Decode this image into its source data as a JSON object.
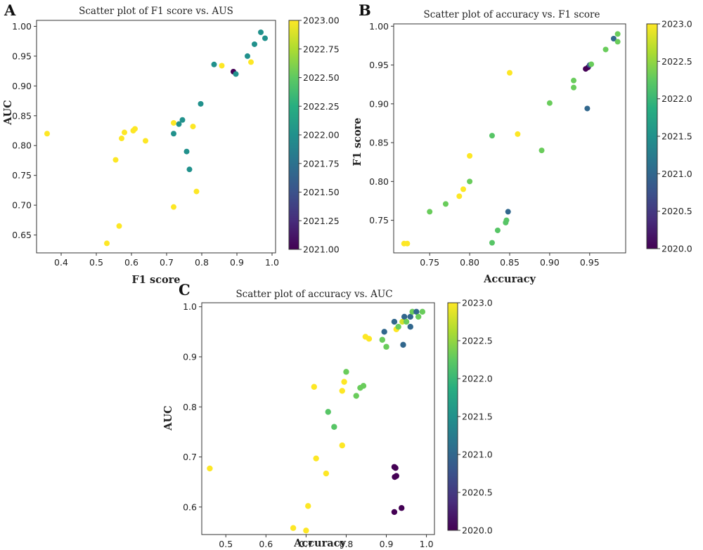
{
  "chart_data": [
    {
      "panel": "A",
      "type": "scatter",
      "title": "Scatter plot of F1 score vs. AUS",
      "xlabel": "F1 score",
      "ylabel": "AUC",
      "xlim": [
        0.33,
        1.01
      ],
      "ylim": [
        0.62,
        1.01
      ],
      "xticks": [
        0.4,
        0.5,
        0.6,
        0.7,
        0.8,
        0.9,
        1.0
      ],
      "xtick_labels": [
        "0.4",
        "0.5",
        "0.6",
        "0.7",
        "0.8",
        "0.9",
        "1.0"
      ],
      "yticks": [
        0.65,
        0.7,
        0.75,
        0.8,
        0.85,
        0.9,
        0.95,
        1.0
      ],
      "ytick_labels": [
        "0.65",
        "0.70",
        "0.75",
        "0.80",
        "0.85",
        "0.90",
        "0.95",
        "1.00"
      ],
      "colorbar": {
        "label": "",
        "range": [
          2021.0,
          2023.0
        ],
        "ticks": [
          2021.0,
          2021.25,
          2021.5,
          2021.75,
          2022.0,
          2022.25,
          2022.5,
          2022.75,
          2023.0
        ],
        "tick_labels": [
          "2021.00",
          "2021.25",
          "2021.50",
          "2021.75",
          "2022.00",
          "2022.25",
          "2022.50",
          "2022.75",
          "2023.00"
        ]
      },
      "points": [
        {
          "x": 0.36,
          "y": 0.82,
          "year": 2023
        },
        {
          "x": 0.53,
          "y": 0.636,
          "year": 2023
        },
        {
          "x": 0.555,
          "y": 0.776,
          "year": 2023
        },
        {
          "x": 0.565,
          "y": 0.665,
          "year": 2023
        },
        {
          "x": 0.572,
          "y": 0.812,
          "year": 2023
        },
        {
          "x": 0.58,
          "y": 0.822,
          "year": 2023
        },
        {
          "x": 0.605,
          "y": 0.825,
          "year": 2023
        },
        {
          "x": 0.61,
          "y": 0.828,
          "year": 2023
        },
        {
          "x": 0.64,
          "y": 0.808,
          "year": 2023
        },
        {
          "x": 0.72,
          "y": 0.697,
          "year": 2023
        },
        {
          "x": 0.72,
          "y": 0.838,
          "year": 2023
        },
        {
          "x": 0.72,
          "y": 0.82,
          "year": 2022
        },
        {
          "x": 0.735,
          "y": 0.836,
          "year": 2022
        },
        {
          "x": 0.745,
          "y": 0.843,
          "year": 2022
        },
        {
          "x": 0.757,
          "y": 0.79,
          "year": 2022
        },
        {
          "x": 0.765,
          "y": 0.76,
          "year": 2022
        },
        {
          "x": 0.775,
          "y": 0.832,
          "year": 2023
        },
        {
          "x": 0.785,
          "y": 0.723,
          "year": 2023
        },
        {
          "x": 0.797,
          "y": 0.87,
          "year": 2022
        },
        {
          "x": 0.835,
          "y": 0.936,
          "year": 2022
        },
        {
          "x": 0.857,
          "y": 0.934,
          "year": 2023
        },
        {
          "x": 0.89,
          "y": 0.924,
          "year": 2021
        },
        {
          "x": 0.897,
          "y": 0.92,
          "year": 2022
        },
        {
          "x": 0.93,
          "y": 0.95,
          "year": 2022
        },
        {
          "x": 0.94,
          "y": 0.94,
          "year": 2023
        },
        {
          "x": 0.95,
          "y": 0.97,
          "year": 2022
        },
        {
          "x": 0.968,
          "y": 0.99,
          "year": 2022
        },
        {
          "x": 0.98,
          "y": 0.98,
          "year": 2022
        }
      ]
    },
    {
      "panel": "B",
      "type": "scatter",
      "title": "Scatter plot of accuracy vs. F1 score",
      "xlabel": "Accuracy",
      "ylabel": "F1 score",
      "xlim": [
        0.705,
        0.995
      ],
      "ylim": [
        0.708,
        1.003
      ],
      "xticks": [
        0.75,
        0.8,
        0.85,
        0.9,
        0.95
      ],
      "xtick_labels": [
        "0.75",
        "0.80",
        "0.85",
        "0.90",
        "0.95"
      ],
      "yticks": [
        0.75,
        0.8,
        0.85,
        0.9,
        0.95,
        1.0
      ],
      "ytick_labels": [
        "0.75",
        "0.80",
        "0.85",
        "0.90",
        "0.95",
        "1.00"
      ],
      "colorbar": {
        "label": "",
        "range": [
          2020.0,
          2023.0
        ],
        "ticks": [
          2020.0,
          2020.5,
          2021.0,
          2021.5,
          2022.0,
          2022.5,
          2023.0
        ],
        "tick_labels": [
          "2020.0",
          "2020.5",
          "2021.0",
          "2021.5",
          "2022.0",
          "2022.5",
          "2023.0"
        ]
      },
      "points": [
        {
          "x": 0.718,
          "y": 0.72,
          "year": 2023
        },
        {
          "x": 0.722,
          "y": 0.72,
          "year": 2023
        },
        {
          "x": 0.75,
          "y": 0.761,
          "year": 2022.3
        },
        {
          "x": 0.77,
          "y": 0.771,
          "year": 2022.3
        },
        {
          "x": 0.787,
          "y": 0.781,
          "year": 2023
        },
        {
          "x": 0.792,
          "y": 0.79,
          "year": 2023
        },
        {
          "x": 0.8,
          "y": 0.8,
          "year": 2022.3
        },
        {
          "x": 0.8,
          "y": 0.833,
          "year": 2023
        },
        {
          "x": 0.828,
          "y": 0.721,
          "year": 2022.2
        },
        {
          "x": 0.835,
          "y": 0.737,
          "year": 2022.2
        },
        {
          "x": 0.828,
          "y": 0.859,
          "year": 2022.2
        },
        {
          "x": 0.845,
          "y": 0.747,
          "year": 2022.2
        },
        {
          "x": 0.846,
          "y": 0.75,
          "year": 2022.2
        },
        {
          "x": 0.848,
          "y": 0.761,
          "year": 2021
        },
        {
          "x": 0.85,
          "y": 0.94,
          "year": 2023
        },
        {
          "x": 0.86,
          "y": 0.861,
          "year": 2023
        },
        {
          "x": 0.89,
          "y": 0.84,
          "year": 2022.3
        },
        {
          "x": 0.9,
          "y": 0.901,
          "year": 2022.3
        },
        {
          "x": 0.93,
          "y": 0.93,
          "year": 2022.3
        },
        {
          "x": 0.93,
          "y": 0.921,
          "year": 2022.3
        },
        {
          "x": 0.945,
          "y": 0.945,
          "year": 2020
        },
        {
          "x": 0.948,
          "y": 0.947,
          "year": 2020
        },
        {
          "x": 0.95,
          "y": 0.95,
          "year": 2020.8
        },
        {
          "x": 0.952,
          "y": 0.951,
          "year": 2022.3
        },
        {
          "x": 0.947,
          "y": 0.894,
          "year": 2021
        },
        {
          "x": 0.97,
          "y": 0.97,
          "year": 2022.3
        },
        {
          "x": 0.98,
          "y": 0.984,
          "year": 2021
        },
        {
          "x": 0.985,
          "y": 0.99,
          "year": 2022.3
        },
        {
          "x": 0.985,
          "y": 0.98,
          "year": 2022.3
        }
      ]
    },
    {
      "panel": "C",
      "type": "scatter",
      "title": "Scatter plot of accuracy vs. AUC",
      "xlabel": "Accuracy",
      "ylabel": "AUC",
      "xlim": [
        0.44,
        1.02
      ],
      "ylim": [
        0.545,
        1.008
      ],
      "xticks": [
        0.5,
        0.6,
        0.7,
        0.8,
        0.9,
        1.0
      ],
      "xtick_labels": [
        "0.5",
        "0.6",
        "0.7",
        "0.8",
        "0.9",
        "1.0"
      ],
      "yticks": [
        0.6,
        0.7,
        0.8,
        0.9,
        1.0
      ],
      "ytick_labels": [
        "0.6",
        "0.7",
        "0.8",
        "0.9",
        "1.0"
      ],
      "colorbar": {
        "label": "",
        "range": [
          2020.0,
          2023.0
        ],
        "ticks": [
          2020.0,
          2020.5,
          2021.0,
          2021.5,
          2022.0,
          2022.5,
          2023.0
        ],
        "tick_labels": [
          "2020.0",
          "2020.5",
          "2021.0",
          "2021.5",
          "2022.0",
          "2022.5",
          "2023.0"
        ]
      },
      "points": [
        {
          "x": 0.46,
          "y": 0.677,
          "year": 2023
        },
        {
          "x": 0.668,
          "y": 0.558,
          "year": 2023
        },
        {
          "x": 0.7,
          "y": 0.553,
          "year": 2023
        },
        {
          "x": 0.705,
          "y": 0.602,
          "year": 2023
        },
        {
          "x": 0.72,
          "y": 0.84,
          "year": 2023
        },
        {
          "x": 0.725,
          "y": 0.697,
          "year": 2023
        },
        {
          "x": 0.75,
          "y": 0.667,
          "year": 2023
        },
        {
          "x": 0.755,
          "y": 0.79,
          "year": 2022.2
        },
        {
          "x": 0.77,
          "y": 0.76,
          "year": 2022.2
        },
        {
          "x": 0.79,
          "y": 0.832,
          "year": 2023
        },
        {
          "x": 0.795,
          "y": 0.85,
          "year": 2023
        },
        {
          "x": 0.79,
          "y": 0.723,
          "year": 2023
        },
        {
          "x": 0.8,
          "y": 0.87,
          "year": 2022.3
        },
        {
          "x": 0.825,
          "y": 0.822,
          "year": 2022.3
        },
        {
          "x": 0.835,
          "y": 0.838,
          "year": 2022.3
        },
        {
          "x": 0.843,
          "y": 0.842,
          "year": 2022.3
        },
        {
          "x": 0.848,
          "y": 0.94,
          "year": 2023
        },
        {
          "x": 0.857,
          "y": 0.936,
          "year": 2023
        },
        {
          "x": 0.89,
          "y": 0.934,
          "year": 2022.3
        },
        {
          "x": 0.895,
          "y": 0.95,
          "year": 2021
        },
        {
          "x": 0.9,
          "y": 0.92,
          "year": 2022.3
        },
        {
          "x": 0.92,
          "y": 0.59,
          "year": 2020
        },
        {
          "x": 0.92,
          "y": 0.68,
          "year": 2020
        },
        {
          "x": 0.923,
          "y": 0.678,
          "year": 2020
        },
        {
          "x": 0.921,
          "y": 0.66,
          "year": 2020
        },
        {
          "x": 0.925,
          "y": 0.662,
          "year": 2020
        },
        {
          "x": 0.938,
          "y": 0.598,
          "year": 2020
        },
        {
          "x": 0.92,
          "y": 0.97,
          "year": 2021
        },
        {
          "x": 0.925,
          "y": 0.955,
          "year": 2023
        },
        {
          "x": 0.93,
          "y": 0.96,
          "year": 2022.3
        },
        {
          "x": 0.94,
          "y": 0.97,
          "year": 2022.8
        },
        {
          "x": 0.942,
          "y": 0.924,
          "year": 2021
        },
        {
          "x": 0.945,
          "y": 0.98,
          "year": 2021
        },
        {
          "x": 0.95,
          "y": 0.97,
          "year": 2022.3
        },
        {
          "x": 0.96,
          "y": 0.96,
          "year": 2021
        },
        {
          "x": 0.96,
          "y": 0.98,
          "year": 2021
        },
        {
          "x": 0.965,
          "y": 0.99,
          "year": 2022.3
        },
        {
          "x": 0.975,
          "y": 0.99,
          "year": 2021
        },
        {
          "x": 0.98,
          "y": 0.98,
          "year": 2022.3
        },
        {
          "x": 0.99,
          "y": 0.99,
          "year": 2022.3
        }
      ]
    }
  ]
}
